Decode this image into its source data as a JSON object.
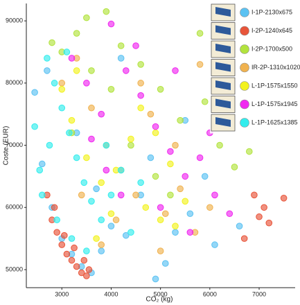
{
  "chart_data": {
    "type": "scatter",
    "x_label": "CO₂ (kg)",
    "y_label": "Coste (EUR)",
    "xlim": [
      2280,
      7730
    ],
    "ylim": [
      47100,
      92800
    ],
    "xticks": [
      3000,
      4000,
      5000,
      6000,
      7000
    ],
    "yticks": [
      50000,
      60000,
      70000,
      80000,
      90000
    ],
    "legend": "upper right",
    "series": [
      {
        "name": "I-1P-2130x675",
        "color": "#5bc2f2",
        "x": [
          2450,
          2600,
          2800,
          3000,
          3200,
          3400,
          3600,
          3800,
          4000,
          4300,
          4600,
          4900,
          5100,
          5300,
          5600,
          5900,
          6100,
          3300,
          2700,
          4800,
          5500,
          6600,
          4200,
          3700
        ],
        "values": [
          78500,
          67000,
          60000,
          55000,
          52500,
          50500,
          49500,
          53000,
          57000,
          55500,
          62000,
          48500,
          51000,
          56000,
          59000,
          65000,
          54000,
          72000,
          82000,
          68000,
          74000,
          57000,
          84000,
          63000
        ]
      },
      {
        "name": "I-2P-1240x645",
        "color": "#e8553a",
        "x": [
          2700,
          2800,
          2900,
          3000,
          3100,
          3200,
          3300,
          3400,
          3500,
          3550,
          2850,
          3050,
          3250,
          3450,
          6900,
          7200,
          7500,
          7100,
          6700,
          7000
        ],
        "values": [
          62000,
          58000,
          56000,
          54000,
          52500,
          51500,
          50500,
          49500,
          49000,
          50000,
          60000,
          55500,
          53500,
          51500,
          62000,
          57500,
          61500,
          60000,
          55000,
          58500
        ]
      },
      {
        "name": "I-2P-1700x500",
        "color": "#b2e33e",
        "x": [
          2800,
          3000,
          3300,
          3500,
          3900,
          4200,
          4600,
          5000,
          5400,
          5800,
          6200,
          6500,
          4000,
          3600,
          4900,
          5900,
          6800,
          3200,
          4400,
          5200
        ],
        "values": [
          86500,
          85000,
          88000,
          90500,
          91500,
          86000,
          83000,
          79000,
          74000,
          88000,
          70000,
          66500,
          79000,
          82000,
          65000,
          77000,
          69000,
          72000,
          70000,
          62000
        ]
      },
      {
        "name": "IR-2P-1310x1020",
        "color": "#f0b24f",
        "x": [
          3000,
          3300,
          3600,
          3900,
          4200,
          4500,
          4800,
          5100,
          5400,
          5700,
          6000,
          3800,
          4600,
          5300,
          4100,
          5000,
          3400,
          5800
        ],
        "values": [
          80000,
          84000,
          76000,
          70000,
          66000,
          62000,
          75000,
          59000,
          63000,
          56000,
          60000,
          54000,
          80000,
          70000,
          58000,
          53000,
          62000,
          83000
        ]
      },
      {
        "name": "L-1P-1575x1550",
        "color": "#f2f21e",
        "x": [
          3000,
          3200,
          3500,
          3800,
          4100,
          4400,
          4700,
          5000,
          5300,
          5500,
          3300,
          4000,
          4600,
          5200,
          3700,
          4900
        ],
        "values": [
          79000,
          74000,
          68000,
          64000,
          66000,
          71000,
          60000,
          58000,
          57000,
          61000,
          82000,
          59000,
          76000,
          67000,
          55000,
          72000
        ]
      },
      {
        "name": "L-1P-1575x1945",
        "color": "#f028f0",
        "x": [
          3200,
          3500,
          3800,
          4000,
          4300,
          4600,
          4900,
          5200,
          5500,
          5800,
          6100,
          6400,
          3900,
          4500,
          5000,
          5600,
          3600,
          4200,
          5300,
          6000
        ],
        "values": [
          84000,
          80000,
          75000,
          89500,
          82000,
          78000,
          73000,
          69000,
          65000,
          68000,
          62000,
          59000,
          66000,
          86000,
          60000,
          56000,
          71000,
          62000,
          82000,
          72000
        ]
      },
      {
        "name": "L-1P-1625x1385",
        "color": "#33eded",
        "x": [
          2450,
          2550,
          2700,
          2850,
          3000,
          3150,
          3300,
          3450,
          3600,
          3800,
          4000,
          4200,
          4400,
          2600,
          2900,
          3200,
          3500,
          2750,
          3100,
          3900,
          4600
        ],
        "values": [
          73000,
          66000,
          84000,
          80000,
          76000,
          72000,
          68000,
          64000,
          61000,
          58000,
          62000,
          66000,
          56000,
          62000,
          58000,
          55000,
          53000,
          70000,
          85000,
          70000,
          64000
        ]
      }
    ]
  }
}
